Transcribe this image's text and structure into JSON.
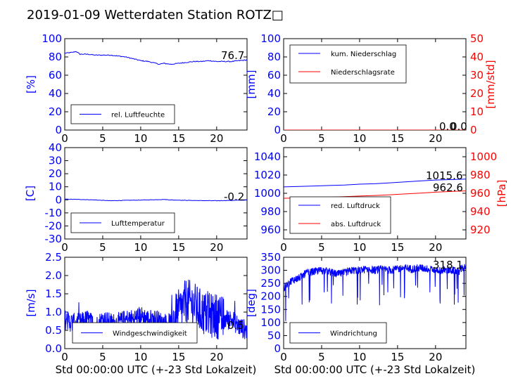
{
  "title": "2019-01-09 Wetterdaten Station ROTZ□",
  "colors": {
    "left_axis": "#0000ff",
    "right_axis": "#ff0000",
    "blue_series": "#0000ff",
    "red_series": "#ff0000"
  },
  "chart_data": [
    {
      "id": "humidity",
      "type": "line",
      "xlim": [
        0,
        24
      ],
      "ylim": [
        0,
        100
      ],
      "xticks": [
        0,
        5,
        10,
        15,
        20
      ],
      "yticks": [
        0,
        20,
        40,
        60,
        80,
        100
      ],
      "xlabel": "",
      "ylabel": "[%]",
      "legend_position": "lower-left",
      "grid": false,
      "series": [
        {
          "name": "rel. Luftfeuchte",
          "color": "#0000ff",
          "x": [
            0,
            1,
            1.5,
            2,
            3,
            4,
            5,
            6,
            7,
            8,
            9,
            10,
            11,
            12,
            12.5,
            13,
            14,
            15,
            16,
            17,
            18,
            19,
            20,
            21,
            22,
            23,
            24
          ],
          "y": [
            84,
            85,
            86,
            83,
            83,
            82,
            82,
            82,
            81,
            80,
            78,
            76,
            75,
            73,
            72,
            73,
            72,
            73,
            74,
            75,
            75,
            76,
            75,
            75,
            75,
            76,
            76.7
          ]
        }
      ],
      "annotations": [
        "76.7"
      ]
    },
    {
      "id": "precipitation",
      "type": "line",
      "xlim": [
        0,
        24
      ],
      "ylim": [
        0,
        100
      ],
      "xticks": [
        0,
        5,
        10,
        15,
        20
      ],
      "yticks": [
        0,
        20,
        40,
        60,
        80,
        100
      ],
      "ylim_right": [
        0,
        50
      ],
      "yticks_right": [
        0,
        10,
        20,
        30,
        40,
        50
      ],
      "xlabel": "",
      "ylabel": "[mm]",
      "ylabel_right": "[mm/std]",
      "legend_position": "upper-left",
      "grid": false,
      "series": [
        {
          "name": "kum. Niederschlag",
          "color": "#0000ff",
          "axis": "left",
          "x": [
            0,
            24
          ],
          "y": [
            0,
            0
          ]
        },
        {
          "name": "Niederschlagsrate",
          "color": "#ff0000",
          "axis": "right",
          "x": [
            0,
            24
          ],
          "y": [
            0,
            0
          ]
        }
      ],
      "annotations": [
        "0.0",
        "0.0"
      ]
    },
    {
      "id": "temperature",
      "type": "line",
      "xlim": [
        0,
        24
      ],
      "ylim": [
        -30,
        40
      ],
      "xticks": [
        0,
        5,
        10,
        15,
        20
      ],
      "yticks": [
        -30,
        -20,
        -10,
        0,
        10,
        20,
        30,
        40
      ],
      "xlabel": "",
      "ylabel": "[C]",
      "legend_position": "lower-left",
      "grid": false,
      "series": [
        {
          "name": "Lufttemperatur",
          "color": "#0000ff",
          "x": [
            0,
            2,
            4,
            6,
            8,
            10,
            12,
            13,
            14,
            16,
            18,
            20,
            22,
            24
          ],
          "y": [
            0.5,
            0.3,
            -0.1,
            -0.7,
            -0.4,
            -0.2,
            0.1,
            0.3,
            -0.1,
            -0.4,
            -0.6,
            -0.7,
            -0.4,
            -0.2
          ]
        }
      ],
      "annotations": [
        "-0.2"
      ]
    },
    {
      "id": "pressure",
      "type": "line",
      "xlim": [
        0,
        24
      ],
      "ylim": [
        950,
        1050
      ],
      "xticks": [
        0,
        5,
        10,
        15,
        20
      ],
      "yticks": [
        960,
        980,
        1000,
        1020,
        1040
      ],
      "ylim_right": [
        910,
        1010
      ],
      "yticks_right": [
        920,
        940,
        960,
        980,
        1000
      ],
      "xlabel": "",
      "ylabel": "",
      "ylabel_right": "[hPa]",
      "legend_position": "lower-left",
      "grid": false,
      "series": [
        {
          "name": "red. Luftdruck",
          "color": "#0000ff",
          "axis": "left",
          "x": [
            0,
            2,
            4,
            6,
            8,
            10,
            12,
            14,
            16,
            18,
            20,
            22,
            24
          ],
          "y": [
            1007,
            1007.5,
            1008,
            1008.5,
            1009,
            1010,
            1010.5,
            1011.5,
            1012.5,
            1013.5,
            1014.5,
            1015,
            1015.6
          ]
        },
        {
          "name": "abs. Luftdruck",
          "color": "#ff0000",
          "axis": "right",
          "x": [
            0,
            2,
            4,
            6,
            8,
            10,
            12,
            14,
            16,
            18,
            20,
            22,
            24
          ],
          "y": [
            954.5,
            955,
            955.3,
            955.8,
            956.3,
            957,
            957.6,
            958.4,
            959.3,
            960.2,
            961.2,
            962,
            962.6
          ]
        }
      ],
      "annotations": [
        "1015.6",
        "962.6"
      ]
    },
    {
      "id": "windspeed",
      "type": "line",
      "xlim": [
        0,
        24
      ],
      "ylim": [
        0,
        2.5
      ],
      "xticks": [
        0,
        5,
        10,
        15,
        20
      ],
      "yticks": [
        0.0,
        0.5,
        1.0,
        1.5,
        2.0,
        2.5
      ],
      "xlabel": "Std 00:00:00 UTC (+-23 Std Lokalzeit)",
      "ylabel": "[m/s]",
      "legend_position": "lower-center",
      "grid": false,
      "series": [
        {
          "name": "Windgeschwindigkeit",
          "color": "#0000ff",
          "x": [
            0,
            1,
            2,
            3,
            4,
            5,
            6,
            7,
            8,
            9,
            10,
            11,
            12,
            13,
            14,
            15,
            16,
            17,
            18,
            19,
            20,
            21,
            22,
            23,
            24
          ],
          "y": [
            0.8,
            0.7,
            0.7,
            0.8,
            0.6,
            0.8,
            0.7,
            0.7,
            0.8,
            0.8,
            0.9,
            0.8,
            0.8,
            0.7,
            0.7,
            1.0,
            1.3,
            1.2,
            1.0,
            0.9,
            0.9,
            0.8,
            0.8,
            0.6,
            0.5
          ]
        }
      ],
      "annotations": [
        "0.5"
      ]
    },
    {
      "id": "winddirection",
      "type": "line",
      "xlim": [
        0,
        24
      ],
      "ylim": [
        0,
        350
      ],
      "xticks": [
        0,
        5,
        10,
        15,
        20
      ],
      "yticks": [
        0,
        50,
        100,
        150,
        200,
        250,
        300,
        350
      ],
      "xlabel": "Std 00:00:00 UTC (+-23 Std Lokalzeit)",
      "ylabel": "[deg]",
      "legend_position": "lower-left",
      "grid": false,
      "series": [
        {
          "name": "Windrichtung",
          "color": "#0000ff",
          "x": [
            0,
            1,
            2,
            3,
            4,
            5,
            6,
            7,
            8,
            9,
            10,
            11,
            12,
            13,
            14,
            15,
            16,
            17,
            18,
            19,
            20,
            21,
            22,
            23,
            24
          ],
          "y": [
            230,
            260,
            270,
            290,
            295,
            300,
            295,
            285,
            290,
            300,
            300,
            305,
            300,
            305,
            300,
            305,
            310,
            305,
            310,
            305,
            300,
            300,
            300,
            295,
            318
          ]
        }
      ],
      "annotations": [
        "318.1"
      ]
    }
  ]
}
